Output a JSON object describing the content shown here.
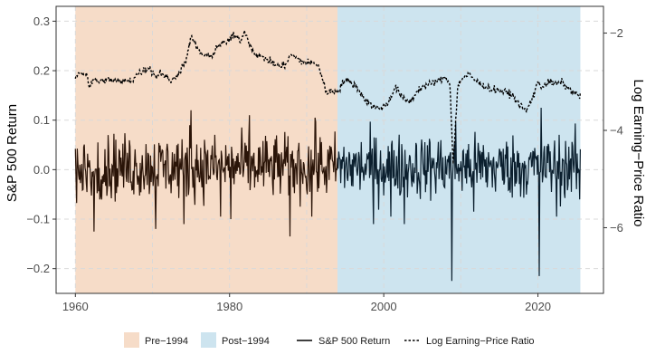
{
  "chart_data": {
    "type": "line",
    "title": "",
    "xlabel": "",
    "ylabel": "S&P 500 Return",
    "y2label": "Log Earning−Price Ratio",
    "xlim": [
      1957.5,
      2028.5
    ],
    "ylim": [
      -0.25,
      0.33
    ],
    "y2lim": [
      -7.35,
      -1.45
    ],
    "x_ticks": [
      1960,
      1980,
      2000,
      2020
    ],
    "x_tick_labels": [
      "1960",
      "1980",
      "2000",
      "2020"
    ],
    "y_ticks": [
      -0.2,
      -0.1,
      0.0,
      0.1,
      0.2,
      0.3
    ],
    "y_tick_labels": [
      "−0.2",
      "−0.1",
      "0.0",
      "0.1",
      "0.2",
      "0.3"
    ],
    "y2_ticks": [
      -2,
      -4,
      -6
    ],
    "y2_tick_labels": [
      "−2",
      "−4",
      "−6"
    ],
    "grid": true,
    "legend_position": "bottom",
    "shaded_regions": [
      {
        "name": "Pre−1994",
        "start": 1960.0,
        "end": 1994.0,
        "color": "#f6dcc8"
      },
      {
        "name": "Post−1994",
        "start": 1994.0,
        "end": 2025.5,
        "color": "#cde4ef"
      }
    ],
    "legend": {
      "pre_label": "Pre−1994",
      "post_label": "Post−1994",
      "return_label": "S&P 500 Return",
      "ep_label": "Log Earning−Price Ratio"
    },
    "colors": {
      "pre_return": "#2a1408",
      "post_return": "#0b1f2e",
      "ep_line": "#000000"
    },
    "series": [
      {
        "name": "S&P 500 Return",
        "axis": "left",
        "style": "solid",
        "note": "monthly returns, generated from seeded noise plus listed shock months",
        "monthly_start": 1960.0,
        "monthly_end": 2025.5,
        "shocks": [
          {
            "t": 1962.4,
            "v": -0.125
          },
          {
            "t": 1962.9,
            "v": 0.055
          },
          {
            "t": 1970.4,
            "v": -0.12
          },
          {
            "t": 1974.1,
            "v": -0.11
          },
          {
            "t": 1974.8,
            "v": 0.09
          },
          {
            "t": 1975.0,
            "v": 0.12
          },
          {
            "t": 1978.8,
            "v": -0.095
          },
          {
            "t": 1980.2,
            "v": -0.1
          },
          {
            "t": 1982.6,
            "v": 0.11
          },
          {
            "t": 1987.8,
            "v": -0.135
          },
          {
            "t": 1990.7,
            "v": -0.095
          },
          {
            "t": 1991.1,
            "v": 0.105
          },
          {
            "t": 1998.7,
            "v": -0.11
          },
          {
            "t": 2000.9,
            "v": -0.095
          },
          {
            "t": 2002.7,
            "v": -0.11
          },
          {
            "t": 2008.8,
            "v": -0.225
          },
          {
            "t": 2009.3,
            "v": 0.095
          },
          {
            "t": 2011.7,
            "v": -0.085
          },
          {
            "t": 2020.2,
            "v": -0.215
          },
          {
            "t": 2020.4,
            "v": 0.125
          },
          {
            "t": 2022.4,
            "v": -0.095
          },
          {
            "t": 2025.4,
            "v": -0.06
          }
        ]
      },
      {
        "name": "Log Earning−Price Ratio",
        "axis": "right",
        "style": "dashed",
        "x": [
          1960.0,
          1960.5,
          1961.5,
          1961.8,
          1962.5,
          1963.0,
          1964.0,
          1966.0,
          1967.5,
          1968.0,
          1969.5,
          1970.5,
          1971.0,
          1972.5,
          1973.5,
          1974.5,
          1975.0,
          1975.7,
          1976.5,
          1977.5,
          1978.5,
          1979.5,
          1980.5,
          1981.5,
          1982.0,
          1982.8,
          1983.5,
          1985.0,
          1986.5,
          1987.2,
          1988.0,
          1989.5,
          1990.5,
          1991.5,
          1992.5,
          1994.0,
          1995.0,
          1996.5,
          1997.5,
          1998.5,
          1999.5,
          2000.5,
          2001.5,
          2002.5,
          2003.5,
          2004.5,
          2006.0,
          2007.5,
          2008.0,
          2008.6,
          2009.0,
          2009.3,
          2009.6,
          2010.0,
          2011.0,
          2012.5,
          2014.0,
          2015.5,
          2016.5,
          2017.5,
          2018.5,
          2019.5,
          2020.0,
          2020.5,
          2021.5,
          2022.5,
          2023.0,
          2024.0,
          2025.5
        ],
        "values": [
          -2.9,
          -2.8,
          -2.85,
          -3.1,
          -2.95,
          -3.0,
          -2.95,
          -3.0,
          -2.95,
          -2.85,
          -2.7,
          -2.9,
          -2.8,
          -3.0,
          -2.8,
          -2.5,
          -2.05,
          -2.3,
          -2.45,
          -2.5,
          -2.25,
          -2.2,
          -2.05,
          -2.15,
          -1.95,
          -2.3,
          -2.45,
          -2.55,
          -2.7,
          -2.65,
          -2.45,
          -2.6,
          -2.6,
          -2.65,
          -3.2,
          -3.2,
          -2.95,
          -3.1,
          -3.35,
          -3.5,
          -3.55,
          -3.45,
          -3.1,
          -3.35,
          -3.4,
          -3.15,
          -3.05,
          -2.95,
          -2.9,
          -3.05,
          -4.7,
          -3.9,
          -3.1,
          -2.95,
          -2.85,
          -3.05,
          -3.15,
          -3.2,
          -3.25,
          -3.45,
          -3.6,
          -3.25,
          -3.0,
          -3.1,
          -3.0,
          -3.05,
          -3.0,
          -3.15,
          -3.3
        ]
      }
    ]
  }
}
